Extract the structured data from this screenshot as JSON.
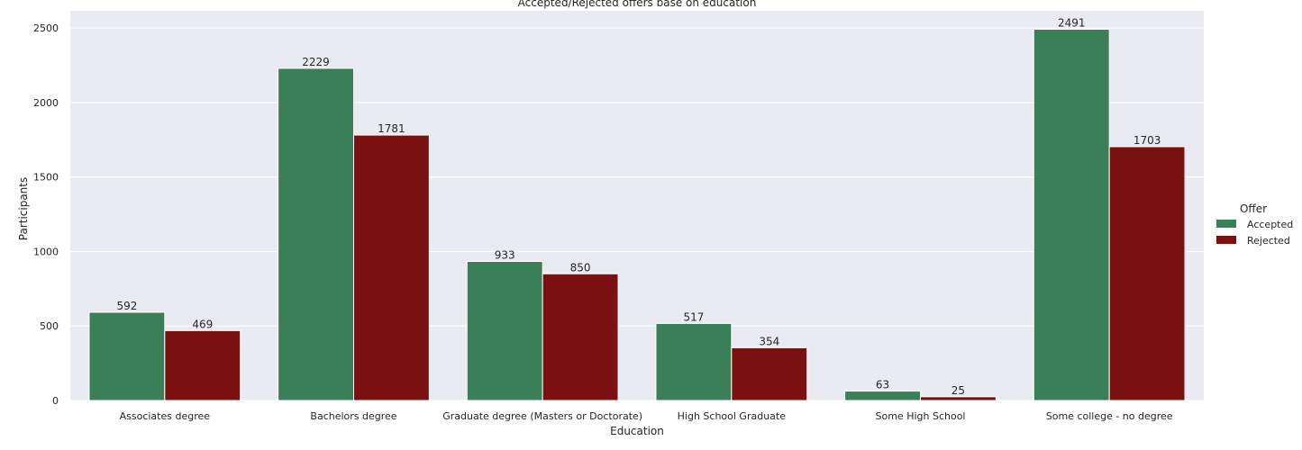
{
  "chart_data": {
    "type": "bar",
    "title": "Accepted/Rejected offers base on education",
    "xlabel": "Education",
    "ylabel": "Participants",
    "categories": [
      "Associates degree",
      "Bachelors degree",
      "Graduate degree (Masters or Doctorate)",
      "High School Graduate",
      "Some High School",
      "Some college - no degree"
    ],
    "series": [
      {
        "name": "Accepted",
        "color": "#3a7f57",
        "values": [
          592,
          2229,
          933,
          517,
          63,
          2491
        ]
      },
      {
        "name": "Rejected",
        "color": "#7b1010",
        "values": [
          469,
          1781,
          850,
          354,
          25,
          1703
        ]
      }
    ],
    "yticks": [
      0,
      500,
      1000,
      1500,
      2000,
      2500
    ],
    "ylim": [
      0,
      2615
    ],
    "grid": true,
    "legend": {
      "title": "Offer",
      "placement": "right"
    }
  }
}
